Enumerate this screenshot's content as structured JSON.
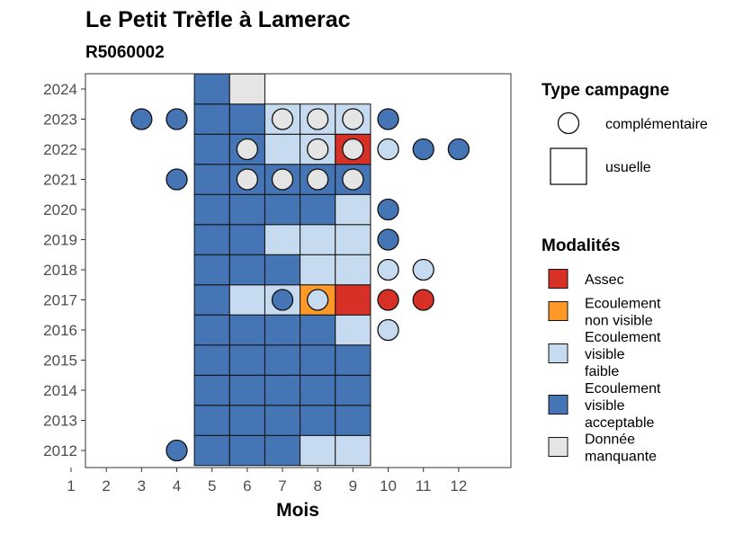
{
  "chart_data": {
    "type": "heatmap",
    "title": "Le Petit Trèfle à Lamerac",
    "subtitle": "R5060002",
    "xlabel": "Mois",
    "ylabel": "",
    "x_ticks": [
      "1",
      "2",
      "3",
      "4",
      "5",
      "6",
      "7",
      "8",
      "9",
      "10",
      "11",
      "12"
    ],
    "y_ticks": [
      "2012",
      "2013",
      "2014",
      "2015",
      "2016",
      "2017",
      "2018",
      "2019",
      "2020",
      "2021",
      "2022",
      "2023",
      "2024"
    ],
    "legend_shape": {
      "title": "Type campagne",
      "items": [
        {
          "shape": "circle",
          "label": "complémentaire"
        },
        {
          "shape": "square",
          "label": "usuelle"
        }
      ]
    },
    "legend_fill": {
      "title": "Modalités",
      "items": [
        {
          "key": "assec",
          "lines": [
            "Assec"
          ],
          "color": "#d73027"
        },
        {
          "key": "nonvisible",
          "lines": [
            "Ecoulement",
            "non visible"
          ],
          "color": "#fe9929"
        },
        {
          "key": "faible",
          "lines": [
            "Ecoulement",
            "visible",
            "faible"
          ],
          "color": "#c6dbef"
        },
        {
          "key": "acceptable",
          "lines": [
            "Ecoulement",
            "visible",
            "acceptable"
          ],
          "color": "#4575b4"
        },
        {
          "key": "manquante",
          "lines": [
            "Donnée",
            "manquante"
          ],
          "color": "#e5e5e5"
        }
      ]
    },
    "usuelle": [
      {
        "year": 2012,
        "month": 5,
        "value": "acceptable"
      },
      {
        "year": 2012,
        "month": 6,
        "value": "acceptable"
      },
      {
        "year": 2012,
        "month": 7,
        "value": "acceptable"
      },
      {
        "year": 2012,
        "month": 8,
        "value": "faible"
      },
      {
        "year": 2012,
        "month": 9,
        "value": "faible"
      },
      {
        "year": 2013,
        "month": 5,
        "value": "acceptable"
      },
      {
        "year": 2013,
        "month": 6,
        "value": "acceptable"
      },
      {
        "year": 2013,
        "month": 7,
        "value": "acceptable"
      },
      {
        "year": 2013,
        "month": 8,
        "value": "acceptable"
      },
      {
        "year": 2013,
        "month": 9,
        "value": "acceptable"
      },
      {
        "year": 2014,
        "month": 5,
        "value": "acceptable"
      },
      {
        "year": 2014,
        "month": 6,
        "value": "acceptable"
      },
      {
        "year": 2014,
        "month": 7,
        "value": "acceptable"
      },
      {
        "year": 2014,
        "month": 8,
        "value": "acceptable"
      },
      {
        "year": 2014,
        "month": 9,
        "value": "acceptable"
      },
      {
        "year": 2015,
        "month": 5,
        "value": "acceptable"
      },
      {
        "year": 2015,
        "month": 6,
        "value": "acceptable"
      },
      {
        "year": 2015,
        "month": 7,
        "value": "acceptable"
      },
      {
        "year": 2015,
        "month": 8,
        "value": "acceptable"
      },
      {
        "year": 2015,
        "month": 9,
        "value": "acceptable"
      },
      {
        "year": 2016,
        "month": 5,
        "value": "acceptable"
      },
      {
        "year": 2016,
        "month": 6,
        "value": "acceptable"
      },
      {
        "year": 2016,
        "month": 7,
        "value": "acceptable"
      },
      {
        "year": 2016,
        "month": 8,
        "value": "acceptable"
      },
      {
        "year": 2016,
        "month": 9,
        "value": "faible"
      },
      {
        "year": 2017,
        "month": 5,
        "value": "acceptable"
      },
      {
        "year": 2017,
        "month": 6,
        "value": "faible"
      },
      {
        "year": 2017,
        "month": 7,
        "value": "faible"
      },
      {
        "year": 2017,
        "month": 8,
        "value": "nonvisible"
      },
      {
        "year": 2017,
        "month": 9,
        "value": "assec"
      },
      {
        "year": 2018,
        "month": 5,
        "value": "acceptable"
      },
      {
        "year": 2018,
        "month": 6,
        "value": "acceptable"
      },
      {
        "year": 2018,
        "month": 7,
        "value": "acceptable"
      },
      {
        "year": 2018,
        "month": 8,
        "value": "faible"
      },
      {
        "year": 2018,
        "month": 9,
        "value": "faible"
      },
      {
        "year": 2019,
        "month": 5,
        "value": "acceptable"
      },
      {
        "year": 2019,
        "month": 6,
        "value": "acceptable"
      },
      {
        "year": 2019,
        "month": 7,
        "value": "faible"
      },
      {
        "year": 2019,
        "month": 8,
        "value": "faible"
      },
      {
        "year": 2019,
        "month": 9,
        "value": "faible"
      },
      {
        "year": 2020,
        "month": 5,
        "value": "acceptable"
      },
      {
        "year": 2020,
        "month": 6,
        "value": "acceptable"
      },
      {
        "year": 2020,
        "month": 7,
        "value": "acceptable"
      },
      {
        "year": 2020,
        "month": 8,
        "value": "acceptable"
      },
      {
        "year": 2020,
        "month": 9,
        "value": "faible"
      },
      {
        "year": 2021,
        "month": 5,
        "value": "acceptable"
      },
      {
        "year": 2021,
        "month": 6,
        "value": "acceptable"
      },
      {
        "year": 2021,
        "month": 7,
        "value": "acceptable"
      },
      {
        "year": 2021,
        "month": 8,
        "value": "acceptable"
      },
      {
        "year": 2021,
        "month": 9,
        "value": "acceptable"
      },
      {
        "year": 2022,
        "month": 5,
        "value": "acceptable"
      },
      {
        "year": 2022,
        "month": 6,
        "value": "acceptable"
      },
      {
        "year": 2022,
        "month": 7,
        "value": "faible"
      },
      {
        "year": 2022,
        "month": 8,
        "value": "faible"
      },
      {
        "year": 2022,
        "month": 9,
        "value": "assec"
      },
      {
        "year": 2023,
        "month": 5,
        "value": "acceptable"
      },
      {
        "year": 2023,
        "month": 6,
        "value": "acceptable"
      },
      {
        "year": 2023,
        "month": 7,
        "value": "faible"
      },
      {
        "year": 2023,
        "month": 8,
        "value": "faible"
      },
      {
        "year": 2023,
        "month": 9,
        "value": "faible"
      },
      {
        "year": 2024,
        "month": 5,
        "value": "acceptable"
      },
      {
        "year": 2024,
        "month": 6,
        "value": "manquante"
      }
    ],
    "complementaire": [
      {
        "year": 2012,
        "month": 4,
        "value": "acceptable"
      },
      {
        "year": 2016,
        "month": 10,
        "value": "faible"
      },
      {
        "year": 2017,
        "month": 7,
        "value": "acceptable"
      },
      {
        "year": 2017,
        "month": 8,
        "value": "faible"
      },
      {
        "year": 2017,
        "month": 10,
        "value": "assec"
      },
      {
        "year": 2017,
        "month": 11,
        "value": "assec"
      },
      {
        "year": 2018,
        "month": 10,
        "value": "faible"
      },
      {
        "year": 2018,
        "month": 11,
        "value": "faible"
      },
      {
        "year": 2019,
        "month": 10,
        "value": "acceptable"
      },
      {
        "year": 2020,
        "month": 10,
        "value": "acceptable"
      },
      {
        "year": 2021,
        "month": 4,
        "value": "acceptable"
      },
      {
        "year": 2021,
        "month": 6,
        "value": "manquante"
      },
      {
        "year": 2021,
        "month": 7,
        "value": "manquante"
      },
      {
        "year": 2021,
        "month": 8,
        "value": "manquante"
      },
      {
        "year": 2021,
        "month": 9,
        "value": "manquante"
      },
      {
        "year": 2022,
        "month": 6,
        "value": "manquante"
      },
      {
        "year": 2022,
        "month": 8,
        "value": "manquante"
      },
      {
        "year": 2022,
        "month": 9,
        "value": "manquante"
      },
      {
        "year": 2022,
        "month": 10,
        "value": "faible"
      },
      {
        "year": 2022,
        "month": 11,
        "value": "acceptable"
      },
      {
        "year": 2022,
        "month": 12,
        "value": "acceptable"
      },
      {
        "year": 2023,
        "month": 3,
        "value": "acceptable"
      },
      {
        "year": 2023,
        "month": 4,
        "value": "acceptable"
      },
      {
        "year": 2023,
        "month": 7,
        "value": "manquante"
      },
      {
        "year": 2023,
        "month": 8,
        "value": "manquante"
      },
      {
        "year": 2023,
        "month": 9,
        "value": "manquante"
      },
      {
        "year": 2023,
        "month": 10,
        "value": "acceptable"
      }
    ]
  }
}
